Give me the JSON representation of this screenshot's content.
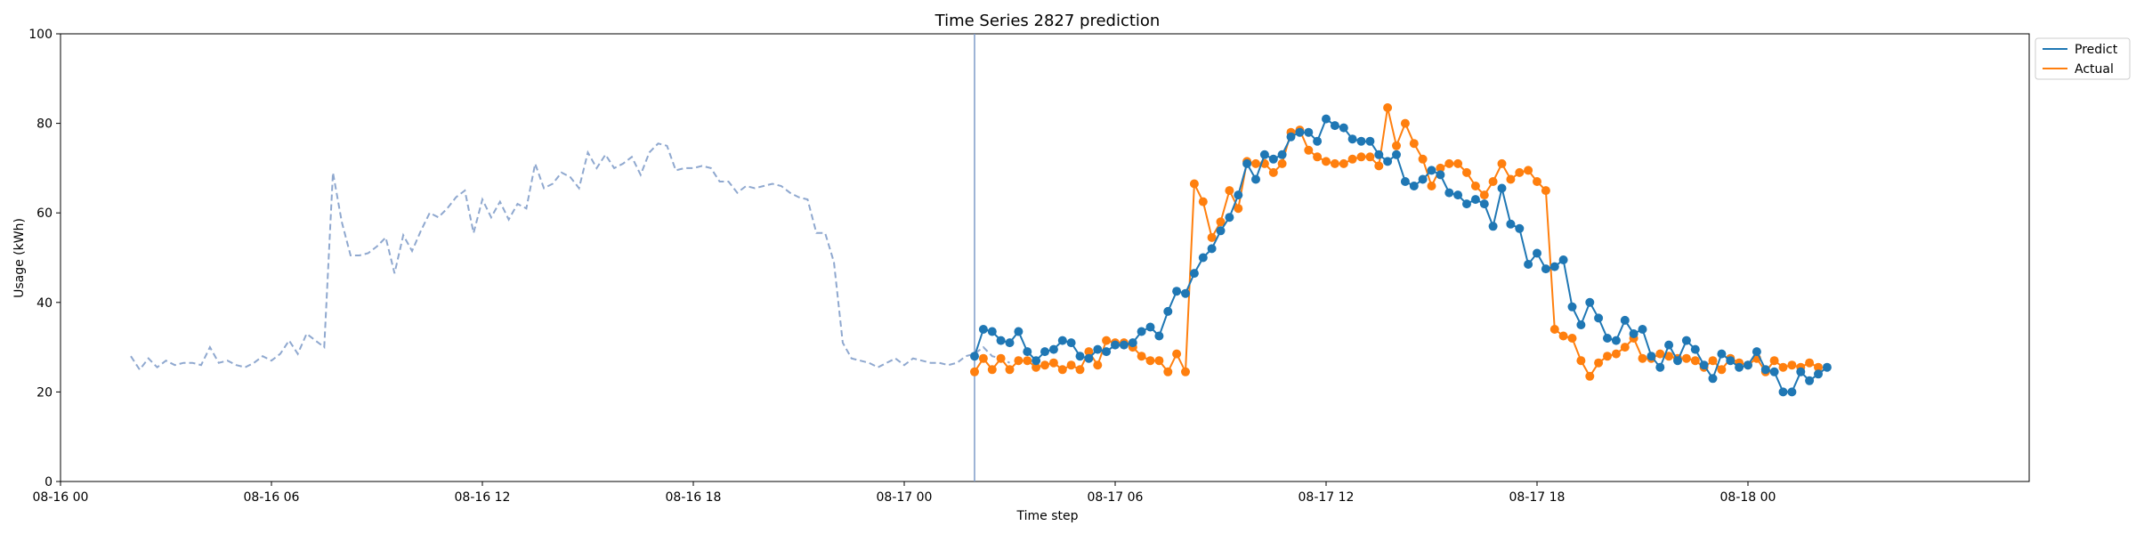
{
  "chart_data": {
    "type": "line",
    "title": "Time Series 2827 prediction",
    "xlabel": "Time step",
    "ylabel": "Usage (kWh)",
    "ylim": [
      0,
      100
    ],
    "yticks": [
      0,
      20,
      40,
      60,
      80,
      100
    ],
    "x_start": "2024-08-16 00:00",
    "x_end": "2024-08-18 08:00",
    "xticks": [
      {
        "t": "2024-08-16 00:00",
        "label": "08-16 00"
      },
      {
        "t": "2024-08-16 06:00",
        "label": "08-16 06"
      },
      {
        "t": "2024-08-16 12:00",
        "label": "08-16 12"
      },
      {
        "t": "2024-08-16 18:00",
        "label": "08-16 18"
      },
      {
        "t": "2024-08-17 00:00",
        "label": "08-17 00"
      },
      {
        "t": "2024-08-17 06:00",
        "label": "08-17 06"
      },
      {
        "t": "2024-08-17 12:00",
        "label": "08-17 12"
      },
      {
        "t": "2024-08-17 18:00",
        "label": "08-17 18"
      },
      {
        "t": "2024-08-18 00:00",
        "label": "08-18 00"
      }
    ],
    "split_time": "2024-08-17 02:00",
    "legend": {
      "position": "upper-right-outside",
      "entries": [
        "Predict",
        "Actual"
      ]
    },
    "colors": {
      "history": "#8fa8cf",
      "predict": "#1f77b4",
      "actual": "#ff7f0e",
      "split_line": "#7f9cc9"
    },
    "history": {
      "start": "2024-08-16 02:00",
      "step_minutes": 15,
      "values": [
        28,
        25,
        27.5,
        25.5,
        27,
        26,
        26.5,
        26.5,
        26,
        30,
        26.5,
        27,
        26,
        25.5,
        26.5,
        28,
        27,
        28.5,
        31.5,
        28.5,
        33,
        31.5,
        30,
        69,
        58,
        50.5,
        50.5,
        51,
        52.5,
        54.5,
        46.5,
        55,
        51.5,
        56,
        60,
        59,
        61,
        63.5,
        65,
        55.5,
        63,
        59,
        62.5,
        58.5,
        62,
        61,
        71,
        65.5,
        66.5,
        69,
        68,
        65.5,
        73.5,
        70,
        73,
        70,
        71,
        72.5,
        68.5,
        73.5,
        75.5,
        75,
        69.5,
        70,
        70,
        70.5,
        70,
        67,
        67,
        64.5,
        66,
        65.5,
        66,
        66.5,
        66,
        64.5,
        63.5,
        63,
        55.5,
        55.5,
        49,
        31,
        27.5,
        27,
        26.5,
        25.5,
        26.5,
        27.5,
        26,
        27.5,
        27,
        26.5,
        26.5,
        26,
        26.5,
        28,
        28.5,
        30,
        28,
        27.5,
        26.5
      ]
    },
    "series": [
      {
        "name": "Predict",
        "start": "2024-08-17 02:00",
        "step_minutes": 15,
        "values": [
          28,
          34,
          33.5,
          31.5,
          31,
          33.5,
          29,
          27,
          29,
          29.5,
          31.5,
          31,
          28,
          27.5,
          29.5,
          29,
          30.5,
          30.5,
          31,
          33.5,
          34.5,
          32.5,
          38,
          42.5,
          42,
          46.5,
          50,
          52,
          56,
          59,
          64,
          71,
          67.5,
          73,
          72,
          73,
          77,
          78,
          78,
          76,
          81,
          79.5,
          79,
          76.5,
          76,
          76,
          73,
          71.5,
          73,
          67,
          66,
          67.5,
          69.5,
          68.5,
          64.5,
          64,
          62,
          63,
          62,
          57,
          65.5,
          57.5,
          56.5,
          48.5,
          51,
          47.5,
          48,
          49.5,
          39,
          35,
          40,
          36.5,
          32,
          31.5,
          36,
          33,
          34,
          28,
          25.5,
          30.5,
          27,
          31.5,
          29.5,
          26,
          23,
          28.5,
          27,
          25.5,
          26,
          29,
          25,
          24.5,
          20,
          20,
          24.5,
          22.5,
          24,
          25.5
        ]
      },
      {
        "name": "Actual",
        "start": "2024-08-17 02:00",
        "step_minutes": 15,
        "values": [
          24.5,
          27.5,
          25,
          27.5,
          25,
          27,
          27,
          25.5,
          26,
          26.5,
          25,
          26,
          25,
          29,
          26,
          31.5,
          31,
          31,
          30,
          28,
          27,
          27,
          24.5,
          28.5,
          24.5,
          66.5,
          62.5,
          54.5,
          58,
          65,
          61,
          71.5,
          71,
          71,
          69,
          71,
          78,
          78.5,
          74,
          72.5,
          71.5,
          71,
          71,
          72,
          72.5,
          72.5,
          70.5,
          83.5,
          75,
          80,
          75.5,
          72,
          66,
          70,
          71,
          71,
          69,
          66,
          64,
          67,
          71,
          67.5,
          69,
          69.5,
          67,
          65,
          34,
          32.5,
          32,
          27,
          23.5,
          26.5,
          28,
          28.5,
          30,
          32,
          27.5,
          27.5,
          28.5,
          28,
          27.5,
          27.5,
          27,
          25.5,
          27,
          25,
          27.5,
          26.5,
          26,
          27.5,
          24.5,
          27,
          25.5,
          26,
          25.5,
          26.5,
          25.5
        ]
      }
    ]
  }
}
